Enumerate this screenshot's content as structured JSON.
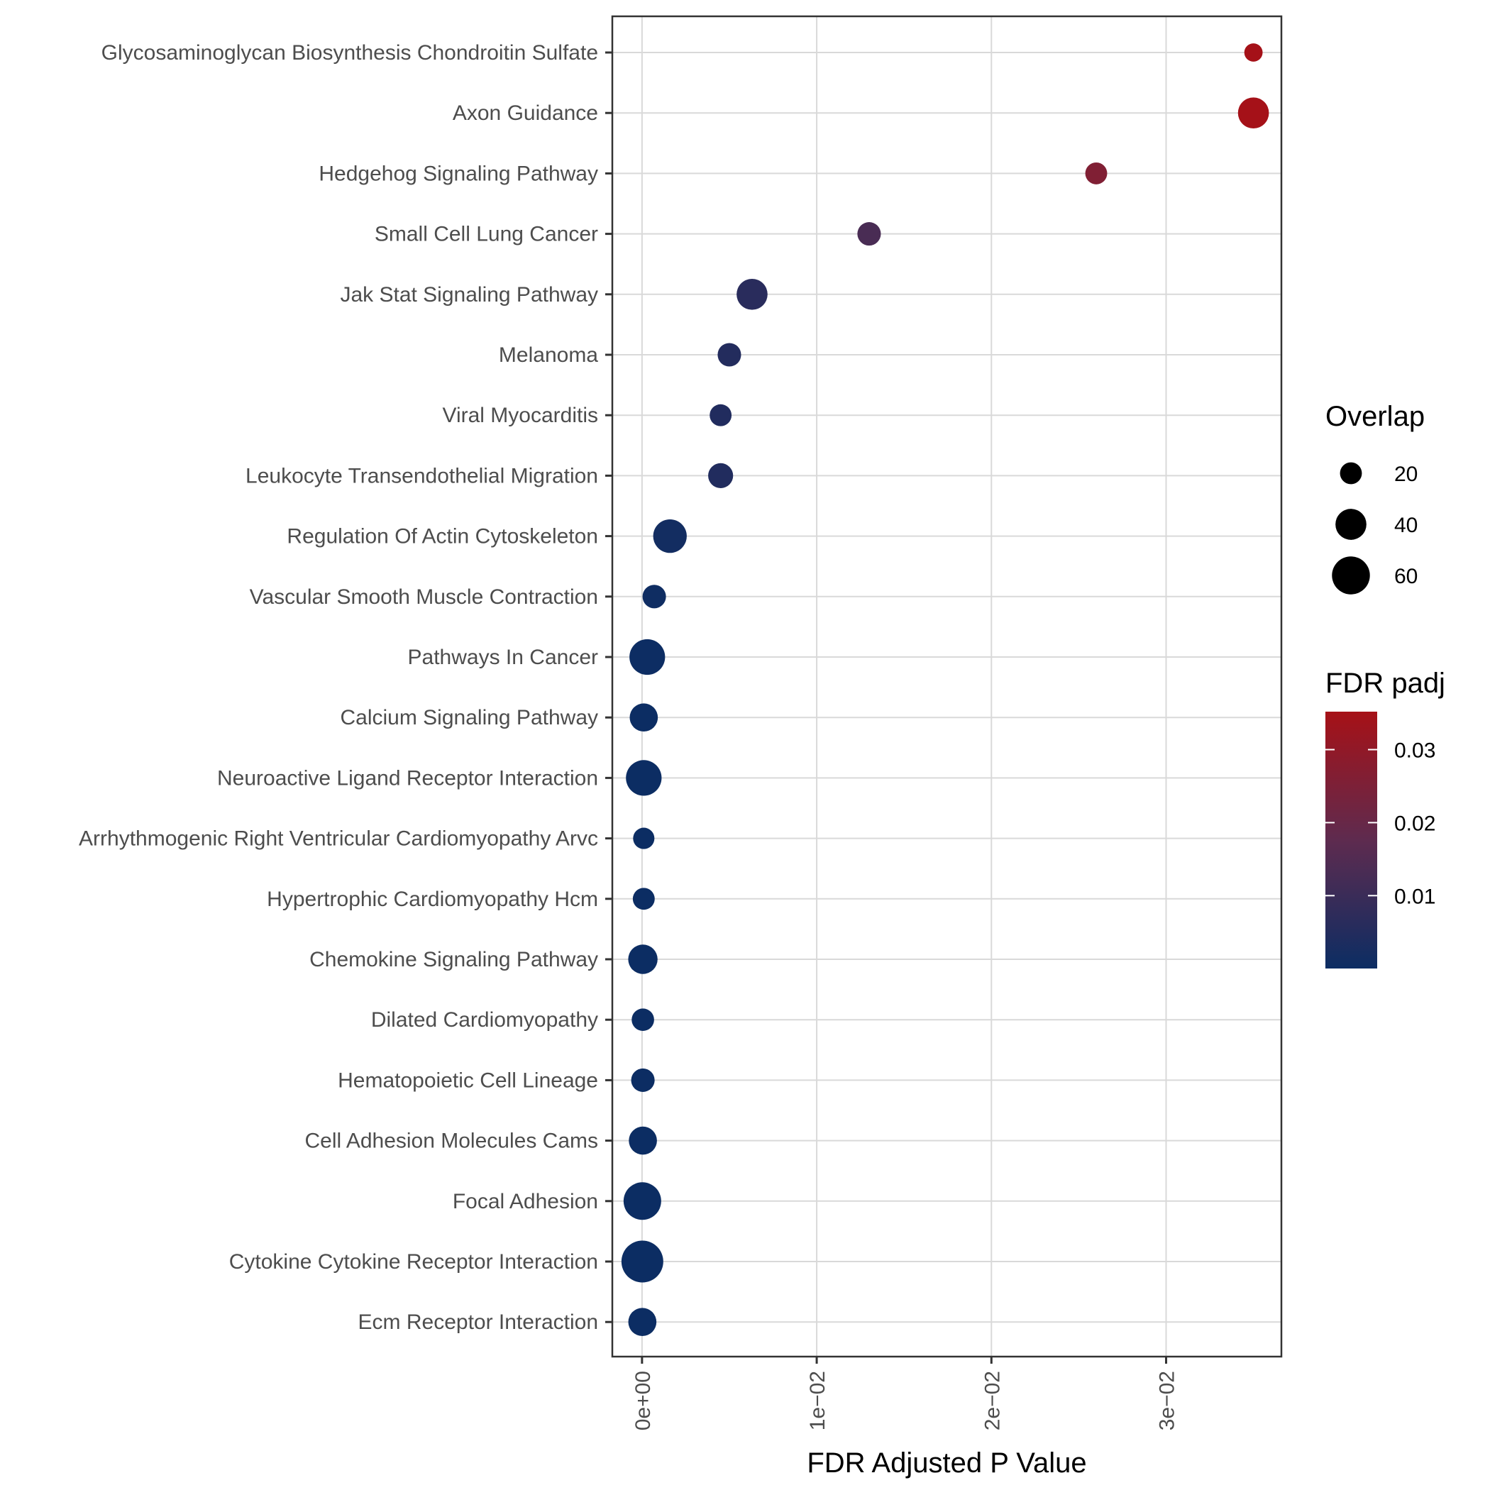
{
  "chart_data": {
    "type": "scatter",
    "title": "",
    "xlabel": "FDR Adjusted P Value",
    "ylabel": "",
    "xlim": [
      -0.0017,
      0.0366
    ],
    "x_ticks": [
      {
        "value": 0,
        "label": "0e+00"
      },
      {
        "value": 0.01,
        "label": "1e−02"
      },
      {
        "value": 0.02,
        "label": "2e−02"
      },
      {
        "value": 0.03,
        "label": "3e−02"
      }
    ],
    "grid": true,
    "legend_position": "right",
    "categories": [
      "Glycosaminoglycan Biosynthesis Chondroitin Sulfate",
      "Axon Guidance",
      "Hedgehog Signaling Pathway",
      "Small Cell Lung Cancer",
      "Jak Stat Signaling Pathway",
      "Melanoma",
      "Viral Myocarditis",
      "Leukocyte Transendothelial Migration",
      "Regulation Of Actin Cytoskeleton",
      "Vascular Smooth Muscle Contraction",
      "Pathways In Cancer",
      "Calcium Signaling Pathway",
      "Neuroactive Ligand Receptor Interaction",
      "Arrhythmogenic Right Ventricular Cardiomyopathy Arvc",
      "Hypertrophic Cardiomyopathy Hcm",
      "Chemokine Signaling Pathway",
      "Dilated Cardiomyopathy",
      "Hematopoietic Cell Lineage",
      "Cell Adhesion Molecules Cams",
      "Focal Adhesion",
      "Cytokine Cytokine Receptor Interaction",
      "Ecm Receptor Interaction"
    ],
    "fdr": [
      0.035,
      0.035,
      0.026,
      0.013,
      0.0063,
      0.005,
      0.0045,
      0.0045,
      0.0016,
      0.0007,
      0.0003,
      0.0001,
      0.0001,
      0.0001,
      0.0001,
      5e-05,
      5e-05,
      5e-05,
      5e-05,
      2e-05,
      2e-05,
      2e-05
    ],
    "overlap": [
      14,
      40,
      20,
      23,
      40,
      23,
      20,
      26,
      47,
      23,
      53,
      33,
      53,
      19,
      20,
      36,
      21,
      23,
      33,
      59,
      73,
      33
    ],
    "size_legend": {
      "title": "Overlap",
      "values": [
        20,
        40,
        60
      ],
      "labels": [
        "20",
        "40",
        "60"
      ]
    },
    "color_legend": {
      "title": "FDR padj",
      "range": [
        2e-05,
        0.0352
      ],
      "ticks": [
        0.01,
        0.02,
        0.03
      ],
      "tick_labels": [
        "0.01",
        "0.02",
        "0.03"
      ],
      "low_color": "#0c2d63",
      "mid_color": "#5e2b4f",
      "high_color": "#a61117"
    }
  }
}
